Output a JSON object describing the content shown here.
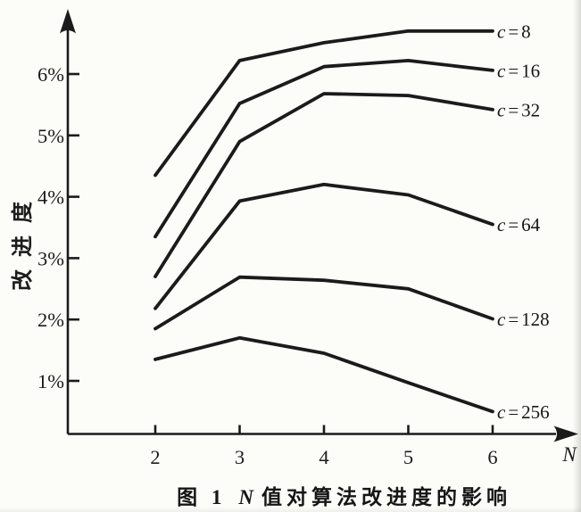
{
  "figure": {
    "ink_color": "#1b1b1b",
    "paper_color": "#fcfcf9",
    "caption": {
      "prefix": "图 1",
      "variable": "N",
      "suffix": "值对算法改进度的影响"
    }
  },
  "chart_data": {
    "type": "line",
    "title": "图 1 N值对算法改进度的影响",
    "xlabel": "N",
    "ylabel": "改进度",
    "x": [
      2,
      3,
      4,
      5,
      6
    ],
    "x_tick_labels": [
      "2",
      "3",
      "4",
      "5",
      "6"
    ],
    "y_tick_values": [
      1,
      2,
      3,
      4,
      5,
      6
    ],
    "y_tick_labels": [
      "1%",
      "2%",
      "3%",
      "4%",
      "5%",
      "6%"
    ],
    "xlim": [
      1.0,
      6.8
    ],
    "ylim": [
      0,
      7.1
    ],
    "grid": false,
    "legend_position": "right-end-labels",
    "unit": "percent improvement",
    "series": [
      {
        "name": "c8",
        "label": "c=8",
        "values": [
          4.35,
          6.22,
          6.51,
          6.7,
          6.7
        ]
      },
      {
        "name": "c16",
        "label": "c=16",
        "values": [
          3.35,
          5.52,
          6.12,
          6.22,
          6.06
        ]
      },
      {
        "name": "c32",
        "label": "c=32",
        "values": [
          2.7,
          4.9,
          5.68,
          5.65,
          5.42
        ]
      },
      {
        "name": "c64",
        "label": "c=64",
        "values": [
          2.18,
          3.93,
          4.2,
          4.03,
          3.55
        ]
      },
      {
        "name": "c128",
        "label": "c=128",
        "values": [
          1.85,
          2.69,
          2.64,
          2.5,
          2.01
        ]
      },
      {
        "name": "c256",
        "label": "c=256",
        "values": [
          1.35,
          1.7,
          1.45,
          0.97,
          0.5
        ]
      }
    ]
  }
}
